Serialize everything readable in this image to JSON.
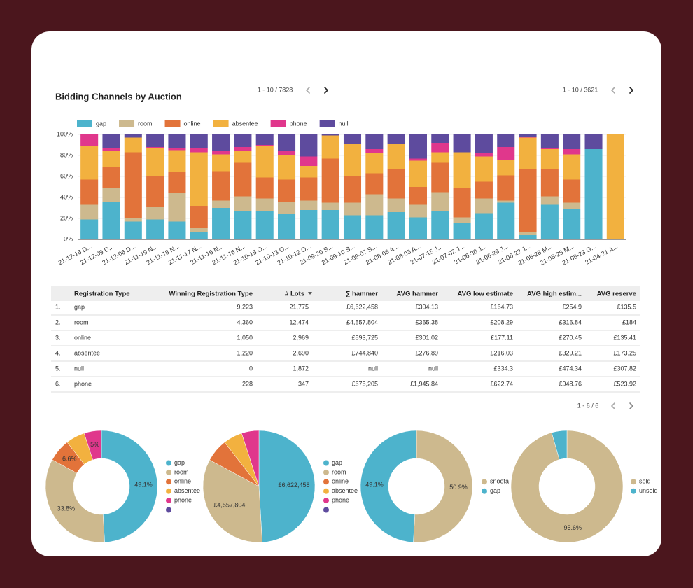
{
  "chart_data": [
    {
      "type": "bar",
      "stacked": true,
      "title": "Bidding Channels by Auction",
      "categories": [
        "21-12-16 D...",
        "21-12-09 D...",
        "21-12-06 D...",
        "21-11-19 N...",
        "21-11-18 N...",
        "21-11-17 N...",
        "21-11-16 N...",
        "21-11-16 N...",
        "21-10-15 O...",
        "21-10-13 O...",
        "21-10-12 O...",
        "21-09-20 S...",
        "21-09-10 S...",
        "21-09-07 S...",
        "21-08-06 A...",
        "21-08-03 A...",
        "21-07-15 J...",
        "21-07-02 J...",
        "21-06-30 J...",
        "21-06-29 J...",
        "21-06-22 J...",
        "21-05-28 M...",
        "21-05-25 M...",
        "21-05-23 G...",
        "21-04-21 A..."
      ],
      "series": [
        {
          "name": "gap",
          "color": "#4db3cc",
          "values": [
            19,
            36,
            17,
            19,
            17,
            7,
            30,
            27,
            27,
            24,
            28,
            28,
            23,
            23,
            26,
            21,
            27,
            16,
            25,
            35,
            4,
            33,
            29,
            86,
            0
          ]
        },
        {
          "name": "room",
          "color": "#cdb98e",
          "values": [
            14,
            13,
            3,
            12,
            27,
            4,
            7,
            14,
            12,
            12,
            9,
            7,
            12,
            20,
            13,
            12,
            18,
            5,
            14,
            2,
            3,
            8,
            6,
            0,
            0
          ]
        },
        {
          "name": "online",
          "color": "#e2733a",
          "values": [
            24,
            20,
            63,
            29,
            20,
            21,
            28,
            32,
            20,
            21,
            22,
            42,
            25,
            20,
            28,
            17,
            28,
            28,
            16,
            24,
            60,
            26,
            22,
            0,
            0
          ]
        },
        {
          "name": "absentee",
          "color": "#f2b13f",
          "values": [
            32,
            15,
            14,
            27,
            21,
            51,
            16,
            11,
            30,
            23,
            11,
            22,
            31,
            19,
            24,
            25,
            10,
            34,
            24,
            15,
            30,
            19,
            24,
            0,
            100
          ]
        },
        {
          "name": "phone",
          "color": "#e0378c",
          "values": [
            11,
            3,
            0,
            1,
            2,
            4,
            3,
            4,
            1,
            4,
            9,
            0,
            0,
            4,
            0,
            2,
            9,
            0,
            3,
            12,
            1,
            1,
            5,
            0,
            0
          ]
        },
        {
          "name": "null",
          "color": "#5e4b9e",
          "values": [
            0,
            13,
            3,
            12,
            13,
            13,
            16,
            12,
            10,
            16,
            21,
            1,
            9,
            14,
            9,
            23,
            8,
            17,
            18,
            12,
            2,
            13,
            14,
            14,
            0
          ]
        }
      ],
      "ylim": [
        0,
        100
      ],
      "yticks": [
        {
          "value": 0,
          "label": "0%"
        },
        {
          "value": 20,
          "label": "20%"
        },
        {
          "value": 40,
          "label": "40%"
        },
        {
          "value": 60,
          "label": "60%"
        },
        {
          "value": 80,
          "label": "80%"
        },
        {
          "value": 100,
          "label": "100%"
        }
      ],
      "grid": true,
      "legend": "top"
    },
    {
      "type": "pie",
      "donut": true,
      "categories": [
        "gap",
        "room",
        "online",
        "absentee",
        "phone",
        null
      ],
      "colors": [
        "#4db3cc",
        "#cdb98e",
        "#e2733a",
        "#f2b13f",
        "#e0378c",
        "#5e4b9e"
      ],
      "values": [
        49.1,
        33.8,
        6.6,
        5.5,
        5,
        null
      ],
      "value_labels": [
        "49.1%",
        "33.8%",
        "6.6%",
        null,
        "5%",
        null
      ]
    },
    {
      "type": "pie",
      "donut": false,
      "categories": [
        "gap",
        "room",
        "online",
        "absentee",
        "phone",
        null
      ],
      "colors": [
        "#4db3cc",
        "#cdb98e",
        "#e2733a",
        "#f2b13f",
        "#e0378c",
        "#5e4b9e"
      ],
      "values": [
        6622458,
        4557804,
        893725,
        744840,
        675205,
        null
      ],
      "value_labels": [
        "£6,622,458",
        "£4,557,804",
        null,
        null,
        null,
        null
      ]
    },
    {
      "type": "pie",
      "donut": true,
      "categories": [
        "snoofa",
        "gap"
      ],
      "colors": [
        "#cdb98e",
        "#4db3cc"
      ],
      "values": [
        50.9,
        49.1
      ],
      "value_labels": [
        "50.9%",
        "49.1%"
      ]
    },
    {
      "type": "pie",
      "donut": true,
      "categories": [
        "sold",
        "unsold"
      ],
      "colors": [
        "#cdb98e",
        "#4db3cc"
      ],
      "values": [
        95.6,
        4.4
      ],
      "value_labels": [
        "95.6%",
        null
      ]
    }
  ],
  "pagination": [
    "1 - 10 / 7828",
    "1 - 10 / 3621",
    "1 - 6 / 6"
  ],
  "table": {
    "columns": [
      "Registration Type",
      "Winning Registration Type",
      "# Lots",
      "∑ hammer",
      "AVG hammer",
      "AVG low estimate",
      "AVG high estim...",
      "AVG reserve"
    ],
    "rows": [
      [
        "1.",
        "gap",
        "9,223",
        "21,775",
        "£6,622,458",
        "£304.13",
        "£164.73",
        "£254.9",
        "£135.5"
      ],
      [
        "2.",
        "room",
        "4,360",
        "12,474",
        "£4,557,804",
        "£365.38",
        "£208.29",
        "£316.84",
        "£184"
      ],
      [
        "3.",
        "online",
        "1,050",
        "2,969",
        "£893,725",
        "£301.02",
        "£177.11",
        "£270.45",
        "£135.41"
      ],
      [
        "4.",
        "absentee",
        "1,220",
        "2,690",
        "£744,840",
        "£276.89",
        "£216.03",
        "£329.21",
        "£173.25"
      ],
      [
        "5.",
        "null",
        "0",
        "1,872",
        "null",
        "null",
        "£334.3",
        "£474.34",
        "£307.82"
      ],
      [
        "6.",
        "phone",
        "228",
        "347",
        "£675,205",
        "£1,945.84",
        "£622.74",
        "£948.76",
        "£523.92"
      ]
    ]
  }
}
